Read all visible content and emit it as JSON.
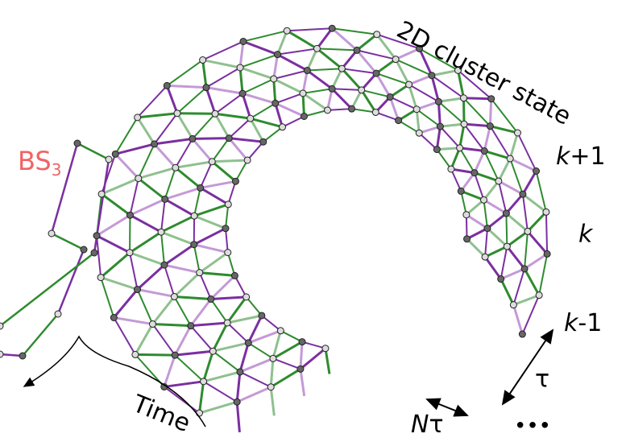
{
  "title": "2D cluster state",
  "labels": {
    "bs": "BS",
    "bs_sub": "3",
    "k_plus": {
      "var": "k",
      "suffix": "+1"
    },
    "k": "k",
    "k_minus": {
      "var": "k",
      "suffix": "-1"
    },
    "tau": "τ",
    "n_tau": {
      "var": "N",
      "suffix": "τ"
    },
    "time": "Time",
    "dots": "•••"
  }
}
